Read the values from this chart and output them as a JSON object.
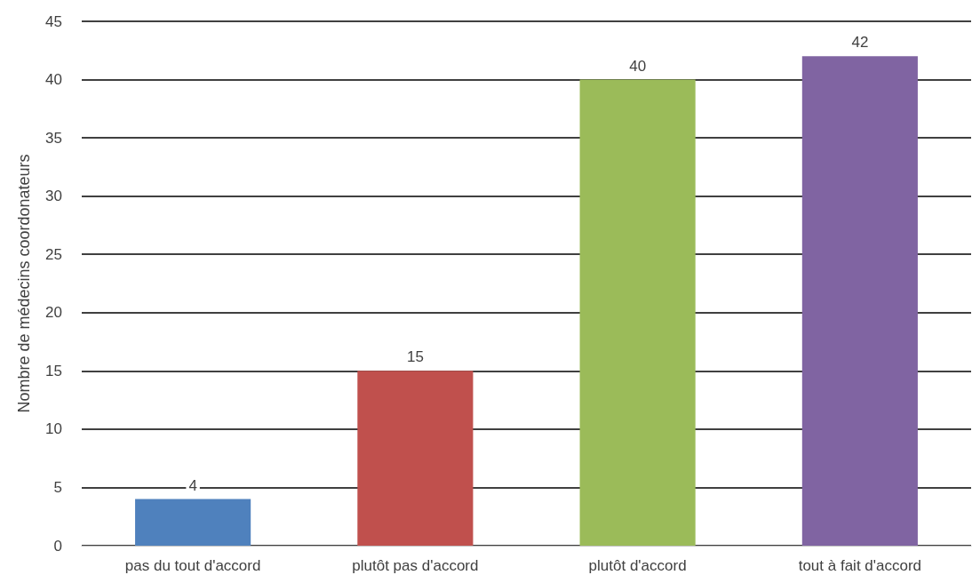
{
  "chart_data": {
    "type": "bar",
    "ylabel": "Nombre de médecins coordonateurs",
    "categories": [
      "pas du tout d'accord",
      "plutôt pas d'accord",
      "plutôt d'accord",
      "tout à fait d'accord"
    ],
    "values": [
      4,
      15,
      40,
      42
    ],
    "colors": [
      "#4f81bd",
      "#c0504d",
      "#9bbb59",
      "#8064a2"
    ],
    "ylim": [
      0,
      45
    ],
    "yticks": [
      0,
      5,
      10,
      15,
      20,
      25,
      30,
      35,
      40,
      45
    ],
    "grid": "y",
    "data_labels": true
  }
}
